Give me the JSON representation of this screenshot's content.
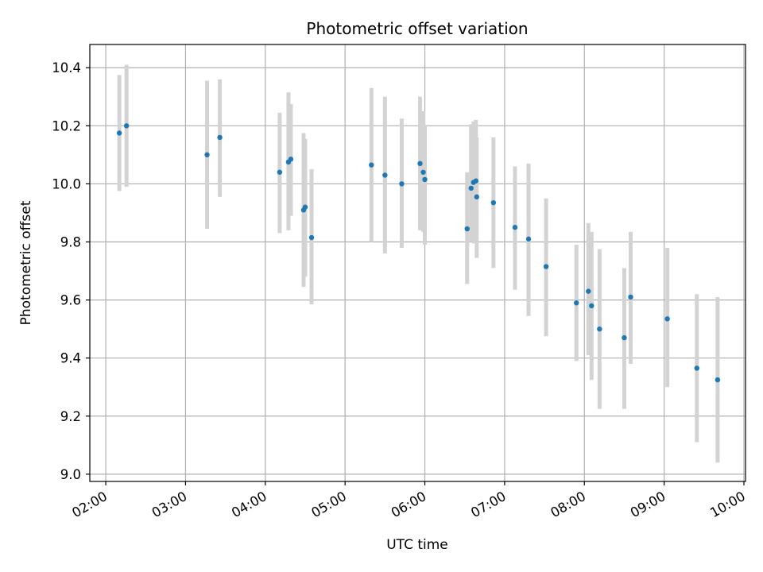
{
  "chart_data": {
    "type": "scatter",
    "title": "Photometric offset variation",
    "xlabel": "UTC time",
    "ylabel": "Photometric offset",
    "x_unit": "hours",
    "xlim": [
      1.8,
      10.02
    ],
    "ylim": [
      8.975,
      10.48
    ],
    "x_ticks": [
      {
        "value": 2,
        "label": "02:00"
      },
      {
        "value": 3,
        "label": "03:00"
      },
      {
        "value": 4,
        "label": "04:00"
      },
      {
        "value": 5,
        "label": "05:00"
      },
      {
        "value": 6,
        "label": "06:00"
      },
      {
        "value": 7,
        "label": "07:00"
      },
      {
        "value": 8,
        "label": "08:00"
      },
      {
        "value": 9,
        "label": "09:00"
      },
      {
        "value": 10,
        "label": "10:00"
      }
    ],
    "y_ticks": [
      {
        "value": 9.0,
        "label": "9.0"
      },
      {
        "value": 9.2,
        "label": "9.2"
      },
      {
        "value": 9.4,
        "label": "9.4"
      },
      {
        "value": 9.6,
        "label": "9.6"
      },
      {
        "value": 9.8,
        "label": "9.8"
      },
      {
        "value": 10.0,
        "label": "10.0"
      },
      {
        "value": 10.2,
        "label": "10.2"
      },
      {
        "value": 10.4,
        "label": "10.4"
      }
    ],
    "grid": true,
    "point_color": "#1f77b4",
    "errorbar_color": "#d3d3d3",
    "points": [
      {
        "x": 2.17,
        "y": 10.175,
        "err_low": 9.975,
        "err_high": 10.375
      },
      {
        "x": 2.26,
        "y": 10.2,
        "err_low": 9.99,
        "err_high": 10.41
      },
      {
        "x": 3.27,
        "y": 10.1,
        "err_low": 9.845,
        "err_high": 10.355
      },
      {
        "x": 3.43,
        "y": 10.16,
        "err_low": 9.955,
        "err_high": 10.36
      },
      {
        "x": 4.18,
        "y": 10.04,
        "err_low": 9.83,
        "err_high": 10.245
      },
      {
        "x": 4.29,
        "y": 10.075,
        "err_low": 9.84,
        "err_high": 10.315
      },
      {
        "x": 4.32,
        "y": 10.085,
        "err_low": 9.89,
        "err_high": 10.275
      },
      {
        "x": 4.48,
        "y": 9.91,
        "err_low": 9.645,
        "err_high": 10.175
      },
      {
        "x": 4.5,
        "y": 9.92,
        "err_low": 9.68,
        "err_high": 10.155
      },
      {
        "x": 4.58,
        "y": 9.815,
        "err_low": 9.585,
        "err_high": 10.05
      },
      {
        "x": 5.33,
        "y": 10.065,
        "err_low": 9.8,
        "err_high": 10.33
      },
      {
        "x": 5.5,
        "y": 10.03,
        "err_low": 9.76,
        "err_high": 10.3
      },
      {
        "x": 5.71,
        "y": 10.0,
        "err_low": 9.78,
        "err_high": 10.225
      },
      {
        "x": 5.94,
        "y": 10.07,
        "err_low": 9.84,
        "err_high": 10.3
      },
      {
        "x": 5.98,
        "y": 10.04,
        "err_low": 9.835,
        "err_high": 10.25
      },
      {
        "x": 6.0,
        "y": 10.015,
        "err_low": 9.79,
        "err_high": 10.2
      },
      {
        "x": 6.53,
        "y": 9.845,
        "err_low": 9.655,
        "err_high": 10.04
      },
      {
        "x": 6.58,
        "y": 9.985,
        "err_low": 9.8,
        "err_high": 10.205
      },
      {
        "x": 6.61,
        "y": 10.005,
        "err_low": 9.795,
        "err_high": 10.215
      },
      {
        "x": 6.64,
        "y": 10.01,
        "err_low": 9.8,
        "err_high": 10.22
      },
      {
        "x": 6.65,
        "y": 9.955,
        "err_low": 9.745,
        "err_high": 10.16
      },
      {
        "x": 6.86,
        "y": 9.935,
        "err_low": 9.71,
        "err_high": 10.16
      },
      {
        "x": 7.13,
        "y": 9.85,
        "err_low": 9.635,
        "err_high": 10.06
      },
      {
        "x": 7.3,
        "y": 9.81,
        "err_low": 9.545,
        "err_high": 10.07
      },
      {
        "x": 7.52,
        "y": 9.715,
        "err_low": 9.475,
        "err_high": 9.95
      },
      {
        "x": 7.9,
        "y": 9.59,
        "err_low": 9.39,
        "err_high": 9.79
      },
      {
        "x": 8.05,
        "y": 9.63,
        "err_low": 9.41,
        "err_high": 9.865
      },
      {
        "x": 8.09,
        "y": 9.58,
        "err_low": 9.325,
        "err_high": 9.835
      },
      {
        "x": 8.19,
        "y": 9.5,
        "err_low": 9.225,
        "err_high": 9.775
      },
      {
        "x": 8.5,
        "y": 9.47,
        "err_low": 9.225,
        "err_high": 9.71
      },
      {
        "x": 8.58,
        "y": 9.61,
        "err_low": 9.38,
        "err_high": 9.835
      },
      {
        "x": 9.04,
        "y": 9.535,
        "err_low": 9.3,
        "err_high": 9.78
      },
      {
        "x": 9.41,
        "y": 9.365,
        "err_low": 9.11,
        "err_high": 9.62
      },
      {
        "x": 9.67,
        "y": 9.325,
        "err_low": 9.04,
        "err_high": 9.61
      }
    ]
  }
}
